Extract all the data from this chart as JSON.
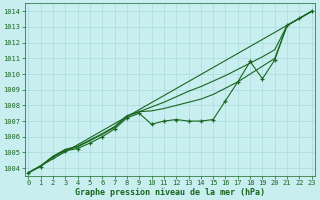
{
  "title": "Graphe pression niveau de la mer (hPa)",
  "bg_color": "#c8eef0",
  "grid_color": "#a0d8d8",
  "line_color": "#1a6620",
  "ylim": [
    1003.5,
    1014.5
  ],
  "xlim": [
    -0.3,
    23.3
  ],
  "yticks": [
    1004,
    1005,
    1006,
    1007,
    1008,
    1009,
    1010,
    1011,
    1012,
    1013,
    1014
  ],
  "xticks": [
    0,
    1,
    2,
    3,
    4,
    5,
    6,
    7,
    8,
    9,
    10,
    11,
    12,
    13,
    14,
    15,
    16,
    17,
    18,
    19,
    20,
    21,
    22,
    23
  ],
  "line_zigzag": [
    [
      0,
      1003.7
    ],
    [
      1,
      1004.1
    ],
    [
      2,
      1004.7
    ],
    [
      3,
      1005.1
    ],
    [
      4,
      1005.25
    ],
    [
      5,
      1005.6
    ],
    [
      6,
      1006.0
    ],
    [
      7,
      1006.5
    ],
    [
      8,
      1007.2
    ],
    [
      9,
      1007.5
    ],
    [
      10,
      1006.8
    ],
    [
      11,
      1007.0
    ],
    [
      12,
      1007.1
    ],
    [
      13,
      1007.0
    ],
    [
      14,
      1007.0
    ],
    [
      15,
      1007.1
    ],
    [
      16,
      1008.3
    ],
    [
      17,
      1009.5
    ],
    [
      18,
      1010.8
    ],
    [
      19,
      1009.7
    ],
    [
      20,
      1010.9
    ],
    [
      21,
      1013.1
    ],
    [
      22,
      1013.55
    ],
    [
      23,
      1014.0
    ]
  ],
  "line_straight1": [
    [
      0,
      1003.7
    ],
    [
      23,
      1014.0
    ]
  ],
  "line_straight2": [
    [
      0,
      1003.7
    ],
    [
      1,
      1004.15
    ],
    [
      2,
      1004.75
    ],
    [
      3,
      1005.15
    ],
    [
      4,
      1005.35
    ],
    [
      5,
      1005.75
    ],
    [
      6,
      1006.15
    ],
    [
      7,
      1006.6
    ],
    [
      8,
      1007.3
    ],
    [
      9,
      1007.6
    ],
    [
      10,
      1007.65
    ],
    [
      11,
      1007.8
    ],
    [
      12,
      1008.0
    ],
    [
      13,
      1008.2
    ],
    [
      14,
      1008.4
    ],
    [
      15,
      1008.7
    ],
    [
      16,
      1009.1
    ],
    [
      17,
      1009.5
    ],
    [
      18,
      1010.0
    ],
    [
      19,
      1010.5
    ],
    [
      20,
      1011.0
    ],
    [
      21,
      1013.1
    ],
    [
      22,
      1013.55
    ],
    [
      23,
      1014.0
    ]
  ],
  "line_smooth": [
    [
      0,
      1003.7
    ],
    [
      1,
      1004.15
    ],
    [
      2,
      1004.75
    ],
    [
      3,
      1005.2
    ],
    [
      4,
      1005.4
    ],
    [
      5,
      1005.8
    ],
    [
      6,
      1006.2
    ],
    [
      7,
      1006.65
    ],
    [
      8,
      1007.35
    ],
    [
      9,
      1007.6
    ],
    [
      10,
      1007.9
    ],
    [
      11,
      1008.2
    ],
    [
      12,
      1008.55
    ],
    [
      13,
      1008.9
    ],
    [
      14,
      1009.2
    ],
    [
      15,
      1009.55
    ],
    [
      16,
      1009.9
    ],
    [
      17,
      1010.3
    ],
    [
      18,
      1010.7
    ],
    [
      19,
      1011.1
    ],
    [
      20,
      1011.55
    ],
    [
      21,
      1013.1
    ],
    [
      22,
      1013.55
    ],
    [
      23,
      1014.0
    ]
  ]
}
